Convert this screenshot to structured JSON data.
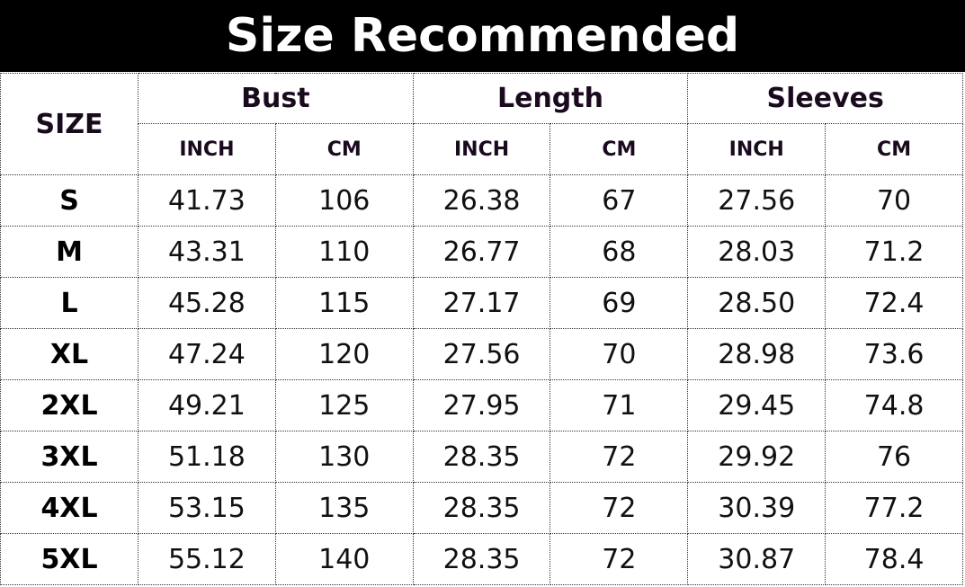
{
  "title": "Size Recommended",
  "header": {
    "size": "SIZE",
    "groups": [
      "Bust",
      "Length",
      "Sleeves"
    ],
    "units": [
      "INCH",
      "CM",
      "INCH",
      "CM",
      "INCH",
      "CM"
    ]
  },
  "rows": [
    {
      "size": "S",
      "values": [
        "41.73",
        "106",
        "26.38",
        "67",
        "27.56",
        "70"
      ]
    },
    {
      "size": "M",
      "values": [
        "43.31",
        "110",
        "26.77",
        "68",
        "28.03",
        "71.2"
      ]
    },
    {
      "size": "L",
      "values": [
        "45.28",
        "115",
        "27.17",
        "69",
        "28.50",
        "72.4"
      ]
    },
    {
      "size": "XL",
      "values": [
        "47.24",
        "120",
        "27.56",
        "70",
        "28.98",
        "73.6"
      ]
    },
    {
      "size": "2XL",
      "values": [
        "49.21",
        "125",
        "27.95",
        "71",
        "29.45",
        "74.8"
      ]
    },
    {
      "size": "3XL",
      "values": [
        "51.18",
        "130",
        "28.35",
        "72",
        "29.92",
        "76"
      ]
    },
    {
      "size": "4XL",
      "values": [
        "53.15",
        "135",
        "28.35",
        "72",
        "30.39",
        "77.2"
      ]
    },
    {
      "size": "5XL",
      "values": [
        "55.12",
        "140",
        "28.35",
        "72",
        "30.87",
        "78.4"
      ]
    }
  ]
}
